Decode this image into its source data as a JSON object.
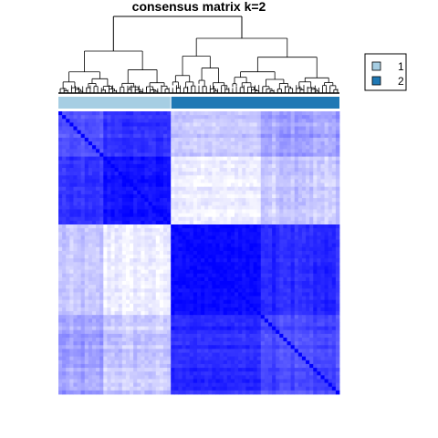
{
  "chart_data": {
    "type": "heatmap",
    "title": "consensus matrix k=2",
    "clusters": [
      "1",
      "2"
    ],
    "cluster_sizes": [
      30,
      45
    ],
    "value_range": [
      0,
      1
    ],
    "colors": {
      "low": "#ffffff",
      "high": "#0000ff",
      "cluster_1": "#a6cee3",
      "cluster_2": "#1f78b4",
      "dendrogram": "#000000"
    },
    "blocks": [
      {
        "rows": "1",
        "cols": "1",
        "level": "mixed, high"
      },
      {
        "rows": "1",
        "cols": "2",
        "level": "low"
      },
      {
        "rows": "2",
        "cols": "1",
        "level": "low"
      },
      {
        "rows": "2",
        "cols": "2",
        "level": "high"
      }
    ],
    "legend": {
      "entries": [
        {
          "label": "1",
          "color": "#a6cee3"
        },
        {
          "label": "2",
          "color": "#1f78b4"
        }
      ]
    }
  }
}
